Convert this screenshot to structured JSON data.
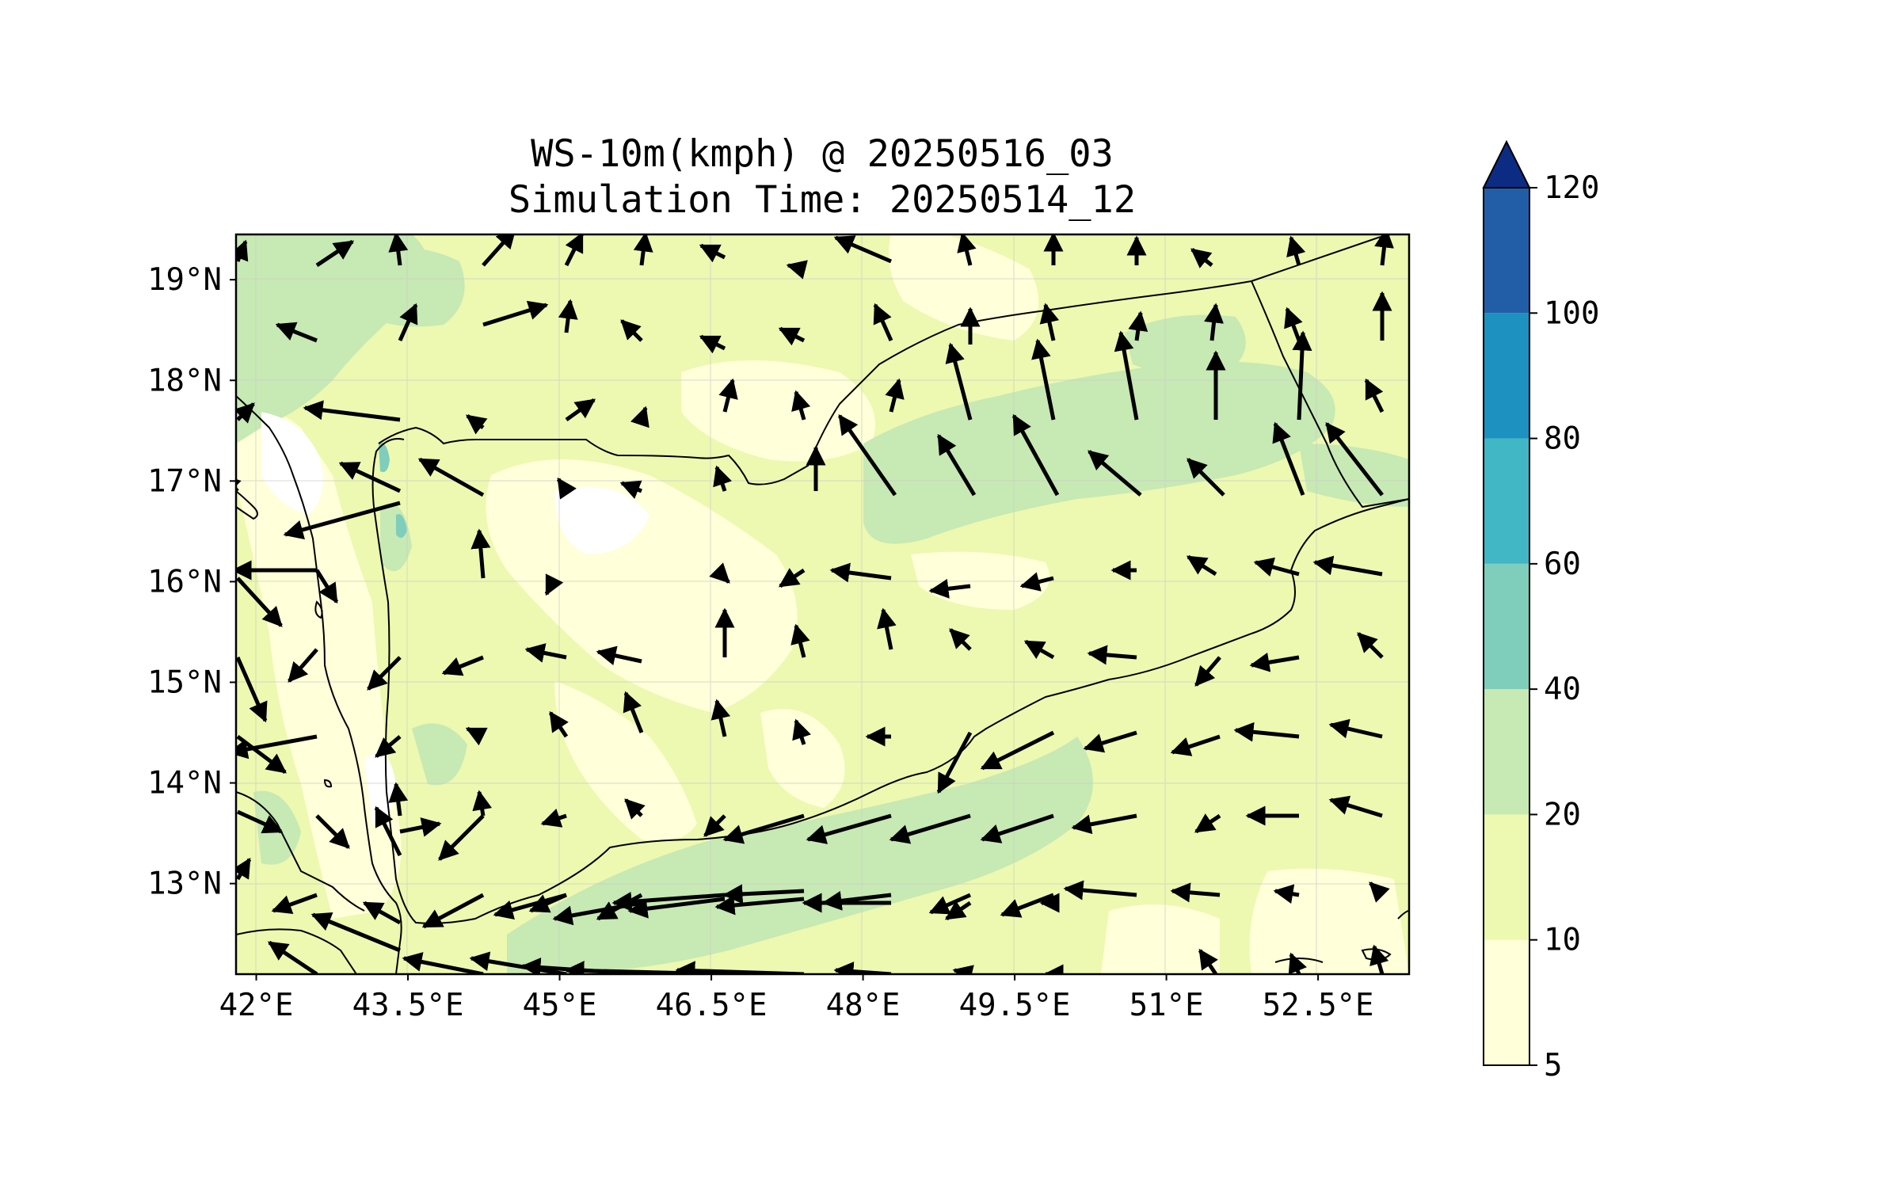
{
  "title_line1": "WS-10m(kmph) @ 20250516_03",
  "title_line2": "Simulation Time: 20250514_12",
  "map": {
    "lon_range": [
      41.8,
      53.4
    ],
    "lat_range": [
      12.1,
      19.45
    ],
    "x_ticks": [
      "42°E",
      "43.5°E",
      "45°E",
      "46.5°E",
      "48°E",
      "49.5°E",
      "51°E",
      "52.5°E"
    ],
    "x_tick_values": [
      42,
      43.5,
      45,
      46.5,
      48,
      49.5,
      51,
      52.5
    ],
    "y_ticks": [
      "13°N",
      "14°N",
      "15°N",
      "16°N",
      "17°N",
      "18°N",
      "19°N"
    ],
    "y_tick_values": [
      13,
      14,
      15,
      16,
      17,
      18,
      19
    ],
    "gridlines": true,
    "background_color": "#ffffd9"
  },
  "colorbar": {
    "levels": [
      5,
      10,
      20,
      40,
      60,
      80,
      100,
      120
    ],
    "tick_labels": [
      "5",
      "10",
      "20",
      "40",
      "60",
      "80",
      "100",
      "120"
    ],
    "colors": [
      "#ffffd9",
      "#edf8b1",
      "#c7e9b4",
      "#7fcdbb",
      "#41b6c4",
      "#1d91c0",
      "#225ea8",
      "#0c2c84"
    ],
    "extend": "max"
  },
  "wind_vectors": {
    "description_units": "kmph",
    "samples": [
      {
        "lon": 42.0,
        "lat": 13.0,
        "u": 6,
        "v": 8
      },
      {
        "lon": 43.5,
        "lat": 13.0,
        "u": -10,
        "v": 4
      },
      {
        "lon": 45.0,
        "lat": 12.6,
        "u": -18,
        "v": -2
      },
      {
        "lon": 46.5,
        "lat": 12.6,
        "u": -22,
        "v": 0
      },
      {
        "lon": 48.0,
        "lat": 13.4,
        "u": -24,
        "v": -8
      },
      {
        "lon": 49.5,
        "lat": 13.4,
        "u": -18,
        "v": -6
      },
      {
        "lon": 51.0,
        "lat": 13.4,
        "u": -10,
        "v": -2
      },
      {
        "lon": 52.5,
        "lat": 14.4,
        "u": -12,
        "v": 2
      },
      {
        "lon": 48.0,
        "lat": 17.0,
        "u": -12,
        "v": 18
      },
      {
        "lon": 49.5,
        "lat": 17.0,
        "u": -10,
        "v": 18
      },
      {
        "lon": 51.0,
        "lat": 17.8,
        "u": 2,
        "v": 22
      },
      {
        "lon": 52.5,
        "lat": 16.1,
        "u": -14,
        "v": 2
      }
    ]
  }
}
